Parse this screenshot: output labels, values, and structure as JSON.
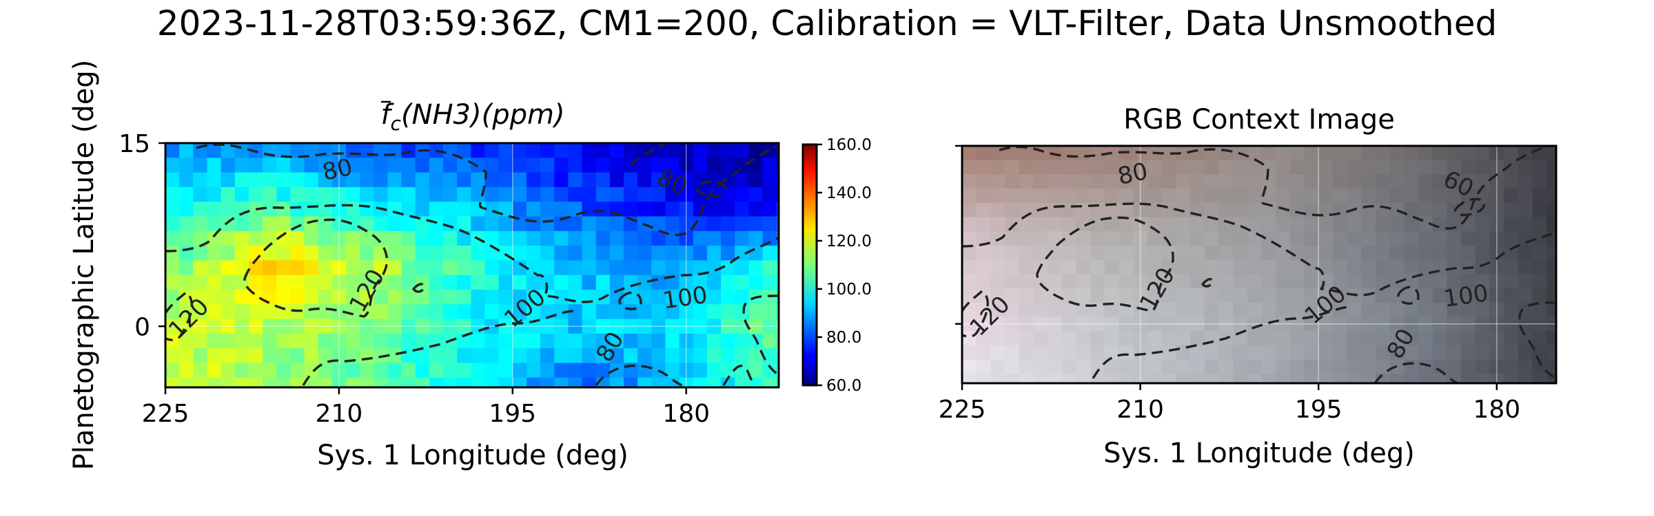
{
  "figure": {
    "suptitle": "2023-11-28T03:59:36Z, CM1=200, Calibration = VLT-Filter, Data Unsmoothed"
  },
  "chart_data": [
    {
      "type": "heatmap",
      "title_parts": {
        "main": "f",
        "sub": "c",
        "rest": "(NH3)(ppm)"
      },
      "xlabel": "Sys. 1 Longitude (deg)",
      "ylabel": "Planetographic Latitude (deg)",
      "xlim": [
        225,
        172
      ],
      "ylim": [
        -5,
        15
      ],
      "x_ticks": [
        225,
        210,
        195,
        180
      ],
      "y_ticks": [
        0,
        15
      ],
      "x_tick_labels": [
        "225",
        "210",
        "195",
        "180"
      ],
      "y_tick_labels": [
        "0",
        "15"
      ],
      "colormap": "jet",
      "colorbar": {
        "min": 60,
        "max": 160,
        "ticks": [
          60,
          80,
          100,
          120,
          140,
          160
        ],
        "tick_labels": [
          "60.0",
          "80.0",
          "100.0",
          "120.0",
          "140.0",
          "160.0"
        ]
      },
      "grid": true,
      "grid_spacing": 1.2,
      "contour_levels": [
        80,
        100,
        120
      ],
      "contour_labels": [
        {
          "text": "80",
          "lon": 210,
          "lat": 12.2
        },
        {
          "text": "80",
          "lon": 181.5,
          "lat": 11.2
        },
        {
          "text": "80",
          "lon": 186,
          "lat": -2.0
        },
        {
          "text": "100",
          "lon": 193.5,
          "lat": 1.0
        },
        {
          "text": "100",
          "lon": 180,
          "lat": 1.7
        },
        {
          "text": "120",
          "lon": 222.5,
          "lat": 0.2
        },
        {
          "text": "120",
          "lon": 207,
          "lat": 2.6
        }
      ],
      "values_description_grid": {
        "lon": [
          225,
          216,
          207,
          198,
          189,
          180,
          172
        ],
        "lat": [
          15,
          10,
          5,
          0,
          -5
        ],
        "values": [
          [
            88,
            84,
            80,
            76,
            70,
            66,
            64
          ],
          [
            98,
            104,
            97,
            90,
            80,
            72,
            70
          ],
          [
            108,
            126,
            116,
            100,
            92,
            88,
            100
          ],
          [
            116,
            116,
            110,
            98,
            92,
            96,
            108
          ],
          [
            118,
            112,
            106,
            96,
            84,
            92,
            104
          ]
        ]
      }
    },
    {
      "type": "image",
      "title": "RGB Context Image",
      "xlabel": "Sys. 1 Longitude (deg)",
      "xlim": [
        225,
        175
      ],
      "ylim": [
        -5,
        15
      ],
      "x_ticks": [
        225,
        210,
        195,
        180
      ],
      "x_tick_labels": [
        "225",
        "210",
        "195",
        "180"
      ],
      "y_ticks": [
        0,
        15
      ],
      "grid": true,
      "contour_levels": [
        60,
        80,
        100,
        120
      ],
      "contour_labels": [
        {
          "text": "80",
          "lon": 210.5,
          "lat": 12.0
        },
        {
          "text": "60",
          "lon": 183.5,
          "lat": 11.2
        },
        {
          "text": "80",
          "lon": 187.5,
          "lat": -2.0
        },
        {
          "text": "100",
          "lon": 194,
          "lat": 1.1
        },
        {
          "text": "100",
          "lon": 182.5,
          "lat": 1.7
        },
        {
          "text": "120",
          "lon": 222.2,
          "lat": 0.2
        },
        {
          "text": "120",
          "lon": 208,
          "lat": 2.6
        }
      ],
      "rgb_color_grid": {
        "lon": [
          225,
          212,
          199,
          186,
          175
        ],
        "lat": [
          15,
          7.5,
          0,
          -5
        ],
        "colors": [
          [
            "#a07a6e",
            "#a08078",
            "#948a86",
            "#6e6a6c",
            "#3c3c44"
          ],
          [
            "#d2c2c6",
            "#b2b0ae",
            "#9a9a9e",
            "#6a6e76",
            "#3a3c44"
          ],
          [
            "#ead8e2",
            "#c0c4c8",
            "#a8acb0",
            "#747a84",
            "#40424a"
          ],
          [
            "#e4e6ec",
            "#c8cad0",
            "#a4a8b0",
            "#6e7480",
            "#3a3e46"
          ]
        ]
      }
    }
  ]
}
